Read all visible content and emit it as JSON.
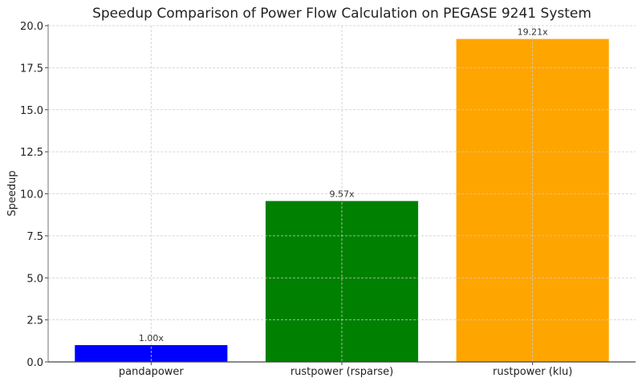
{
  "chart_data": {
    "type": "bar",
    "title": "Speedup Comparison of Power Flow Calculation on PEGASE 9241 System",
    "xlabel": "",
    "ylabel": "Speedup",
    "categories": [
      "pandapower",
      "rustpower (rsparse)",
      "rustpower (klu)"
    ],
    "values": [
      1.0,
      9.57,
      19.21
    ],
    "data_labels": [
      "1.00x",
      "9.57x",
      "19.21x"
    ],
    "colors": [
      "#0000ff",
      "#008000",
      "#ffa500"
    ],
    "ylim": [
      0,
      20
    ],
    "yticks": [
      "0.0",
      "2.5",
      "5.0",
      "7.5",
      "10.0",
      "12.5",
      "15.0",
      "17.5",
      "20.0"
    ],
    "grid": true
  }
}
